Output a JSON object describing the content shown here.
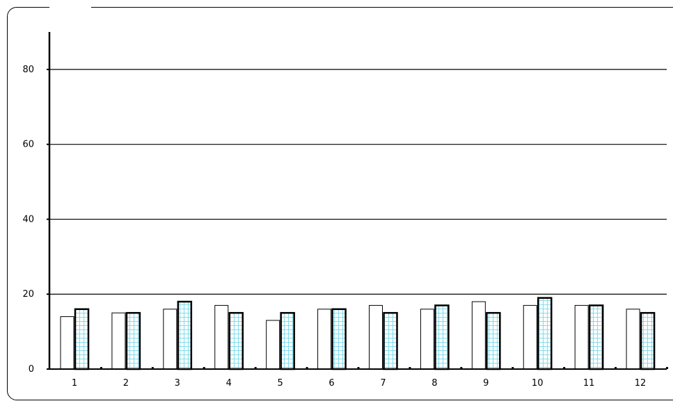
{
  "chart_data": {
    "type": "bar",
    "title": "",
    "xlabel": "",
    "ylabel": "",
    "ylim": [
      0,
      90
    ],
    "yticks": [
      0,
      20,
      40,
      60,
      80
    ],
    "grid": true,
    "categories": [
      "1",
      "2",
      "3",
      "4",
      "5",
      "6",
      "7",
      "8",
      "9",
      "10",
      "11",
      "12"
    ],
    "series": [
      {
        "values": [
          14,
          15,
          16,
          17,
          13,
          16,
          17,
          16,
          18,
          17,
          17,
          16
        ],
        "style": "plain",
        "fill": "#ffffff",
        "stroke": "#000000"
      },
      {
        "values": [
          16,
          15,
          18,
          15,
          15,
          16,
          15,
          17,
          15,
          19,
          17,
          15
        ],
        "style": "grid-pattern",
        "fill": "#ffffff",
        "pattern_color": "#7fdcec",
        "stroke": "#000000"
      }
    ]
  }
}
